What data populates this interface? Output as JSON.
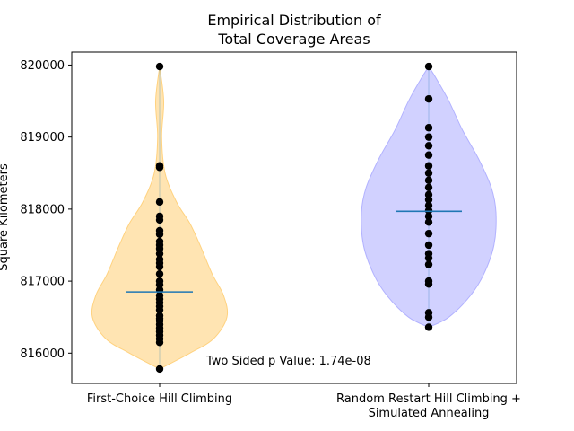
{
  "chart_data": {
    "type": "violin",
    "title_lines": [
      "Empirical Distribution of",
      "Total Coverage Areas"
    ],
    "ylabel": "Square Kilometers",
    "xlabel": "",
    "ylim": [
      815580,
      820180
    ],
    "yticks": [
      816000,
      817000,
      818000,
      819000,
      820000
    ],
    "ytick_labels": [
      "816000",
      "817000",
      "818000",
      "819000",
      "820000"
    ],
    "annotation": "Two Sided p Value: 1.74e-08",
    "mean_line_color": "#1f77b4",
    "series": [
      {
        "label_lines": [
          "First-Choice Hill Climbing"
        ],
        "color": "#ffd27f",
        "mean": 816850,
        "points": [
          819980,
          818600,
          818580,
          818100,
          817900,
          817850,
          817700,
          817650,
          817550,
          817500,
          817450,
          817380,
          817300,
          817250,
          817200,
          817100,
          817000,
          816950,
          816880,
          816800,
          816750,
          816700,
          816650,
          816600,
          816520,
          816480,
          816450,
          816400,
          816350,
          816300,
          816250,
          816200,
          816150,
          815780
        ],
        "violin": [
          [
            815780,
            0.0
          ],
          [
            816000,
            0.45
          ],
          [
            816200,
            0.8
          ],
          [
            816500,
            1.0
          ],
          [
            816800,
            0.95
          ],
          [
            817100,
            0.78
          ],
          [
            817500,
            0.6
          ],
          [
            817800,
            0.45
          ],
          [
            818100,
            0.25
          ],
          [
            818500,
            0.08
          ],
          [
            819000,
            0.03
          ],
          [
            819500,
            0.06
          ],
          [
            819980,
            0.0
          ]
        ]
      },
      {
        "label_lines": [
          "Random Restart Hill Climbing +",
          "Simulated Annealing"
        ],
        "color": "#b2b2ff",
        "mean": 817970,
        "points": [
          819980,
          819530,
          819130,
          819000,
          818880,
          818750,
          818600,
          818500,
          818400,
          818300,
          818200,
          818130,
          818050,
          817980,
          817900,
          817820,
          817660,
          817500,
          817380,
          817320,
          817230,
          817000,
          816960,
          816560,
          816500,
          816360
        ],
        "violin": [
          [
            816360,
            0.0
          ],
          [
            816500,
            0.3
          ],
          [
            816800,
            0.62
          ],
          [
            817100,
            0.82
          ],
          [
            817500,
            0.97
          ],
          [
            817950,
            1.0
          ],
          [
            818300,
            0.93
          ],
          [
            818700,
            0.74
          ],
          [
            819100,
            0.5
          ],
          [
            819500,
            0.3
          ],
          [
            819800,
            0.12
          ],
          [
            819980,
            0.0
          ]
        ]
      }
    ]
  }
}
